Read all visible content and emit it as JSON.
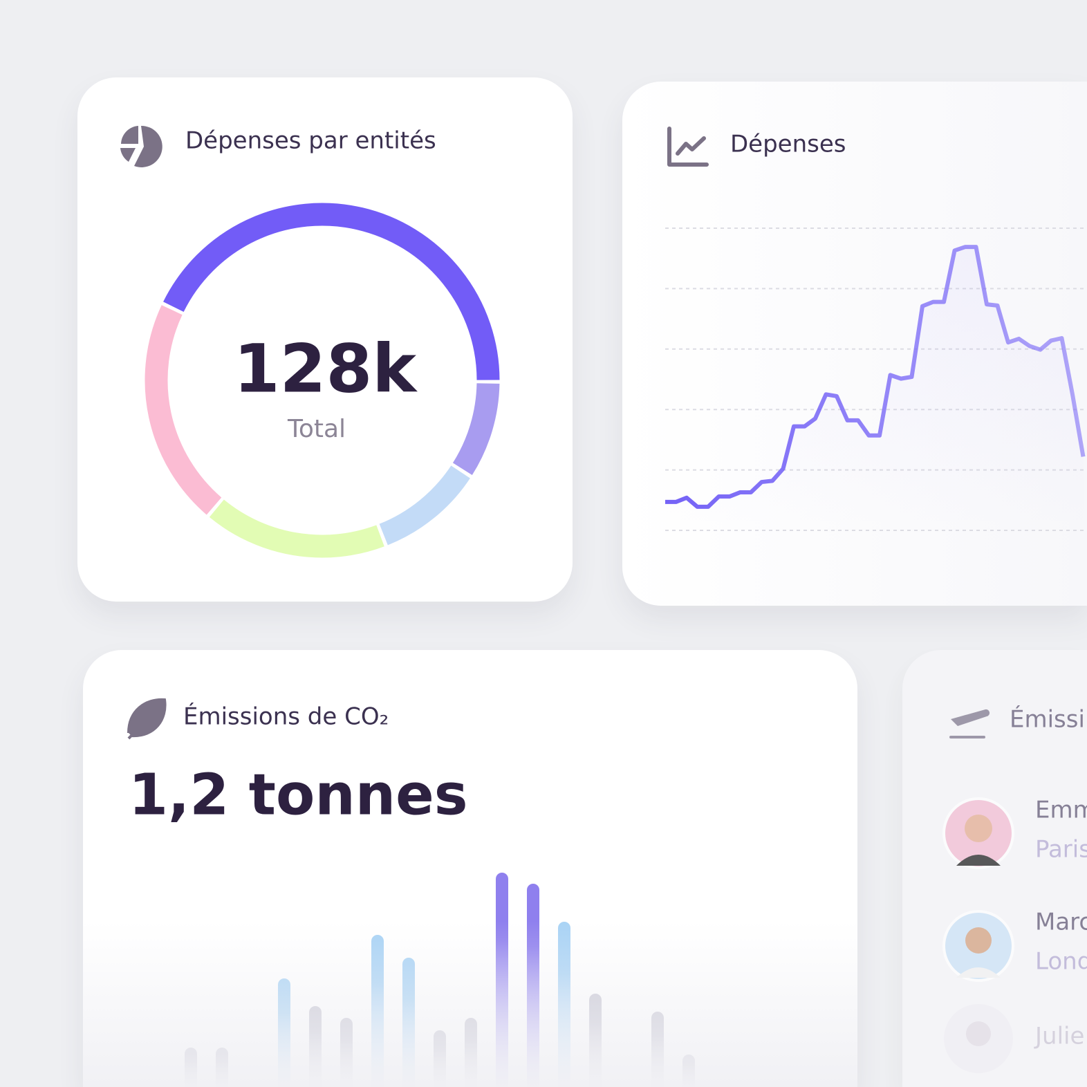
{
  "chart_data": [
    {
      "type": "donut",
      "title": "Dépenses par entités",
      "center_value": "128k",
      "center_label": "Total",
      "values": [
        43,
        9,
        10,
        17,
        21
      ],
      "colors": [
        "#725cf7",
        "#a89cf0",
        "#c3dbf7",
        "#e2fcb4",
        "#fbbcd3"
      ]
    },
    {
      "type": "line",
      "title": "Dépenses",
      "values": [
        0.47,
        0.47,
        0.54,
        0.39,
        0.39,
        0.56,
        0.56,
        0.63,
        0.63,
        0.8,
        0.82,
        1.02,
        1.72,
        1.72,
        1.85,
        2.25,
        2.22,
        1.82,
        1.82,
        1.57,
        1.57,
        2.57,
        2.51,
        2.54,
        3.71,
        3.78,
        3.78,
        4.63,
        4.69,
        4.69,
        3.74,
        3.72,
        3.11,
        3.17,
        3.05,
        2.99,
        3.14,
        3.18,
        2.25,
        1.22
      ],
      "color": "#7462f6",
      "ylim": [
        0,
        5
      ],
      "yticks": [
        0,
        1,
        2,
        3,
        4,
        5
      ],
      "grid": true
    },
    {
      "type": "bar",
      "title": "Émissions de CO₂",
      "headline": "1,2 tonnes",
      "values": [
        57,
        57,
        null,
        157,
        117,
        100,
        220,
        187,
        82,
        100,
        310,
        294,
        239,
        135,
        null,
        109,
        47
      ],
      "colors": [
        "#c9c8d4",
        "#c9c8d4",
        "#c9c8d4",
        "#a9d3f5",
        "#c9c8d4",
        "#c9c8d4",
        "#a9d3f5",
        "#a9d3f5",
        "#c9c8d4",
        "#c9c8d4",
        "#8f80ee",
        "#8f80ee",
        "#a9d3f5",
        "#c9c8d4",
        "#c9c8d4",
        "#c9c8d4",
        "#c9c8d4"
      ],
      "ylim": [
        0,
        320
      ]
    }
  ],
  "panel": {
    "title": "Émissi",
    "people": [
      {
        "name": "Emm",
        "city": "Paris"
      },
      {
        "name": "Marc",
        "city": "Lond"
      },
      {
        "name": "Julie"
      }
    ]
  }
}
